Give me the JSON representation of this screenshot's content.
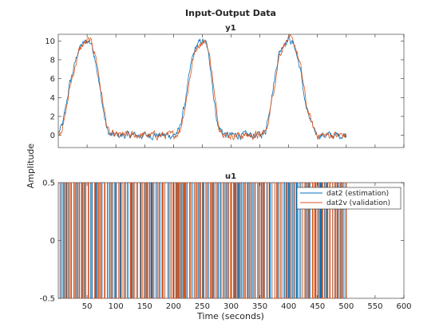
{
  "chart_data": {
    "type": "line",
    "title": "Input-Output Data",
    "xlabel": "Time (seconds)",
    "ylabel": "Amplitude",
    "xlim": [
      0,
      600
    ],
    "xticks": [
      50,
      100,
      150,
      200,
      250,
      300,
      350,
      400,
      450,
      500,
      550,
      600
    ],
    "legend": {
      "placement": "top-right (bottom panel)",
      "entries": [
        "dat2 (estimation)",
        "dat2v (validation)"
      ]
    },
    "colors": {
      "estimation": "#0072BD",
      "validation": "#D95319"
    },
    "panels": [
      {
        "name": "y1",
        "ylim": [
          -1.3,
          10.7
        ],
        "yticks": [
          0,
          2,
          4,
          6,
          8,
          10
        ],
        "envelope": {
          "description": "three pulses of amplitude ~10; baseline ~0",
          "x": [
            1,
            8,
            20,
            35,
            40,
            50,
            57,
            65,
            72,
            80,
            85,
            90,
            100,
            130,
            160,
            180,
            200,
            210,
            220,
            232,
            240,
            250,
            257,
            265,
            270,
            277,
            290,
            320,
            350,
            360,
            373,
            382,
            392,
            400,
            410,
            420,
            430,
            440,
            450,
            500
          ],
          "y": [
            0.3,
            1.2,
            5.5,
            9.0,
            9.5,
            10.0,
            9.8,
            8.0,
            5.0,
            2.0,
            0.5,
            0.0,
            0.0,
            0.0,
            0.0,
            0.0,
            0.0,
            0.5,
            3.5,
            8.0,
            9.5,
            10.0,
            9.7,
            7.0,
            4.0,
            1.0,
            0.0,
            0.0,
            0.0,
            0.5,
            5.0,
            8.5,
            9.8,
            10.3,
            9.5,
            7.0,
            3.0,
            1.0,
            0.0,
            0.0
          ]
        },
        "series": [
          {
            "name": "dat2 (estimation)",
            "x_start": 1,
            "x_end": 500,
            "noise": 0.28
          },
          {
            "name": "dat2v (validation)",
            "x_start": 1,
            "x_end": 500,
            "noise": 0.3
          }
        ]
      },
      {
        "name": "u1",
        "ylim": [
          -0.5,
          0.5
        ],
        "yticks": [
          -0.5,
          0,
          0.5
        ],
        "description": "random binary input switching between -0.5 and 0.5",
        "series": [
          {
            "name": "dat2 (estimation)",
            "x_start": 1,
            "x_end": 500,
            "levels": [
              -0.5,
              0.5
            ]
          },
          {
            "name": "dat2v (validation)",
            "x_start": 1,
            "x_end": 500,
            "levels": [
              -0.5,
              0.5
            ]
          }
        ]
      }
    ]
  }
}
